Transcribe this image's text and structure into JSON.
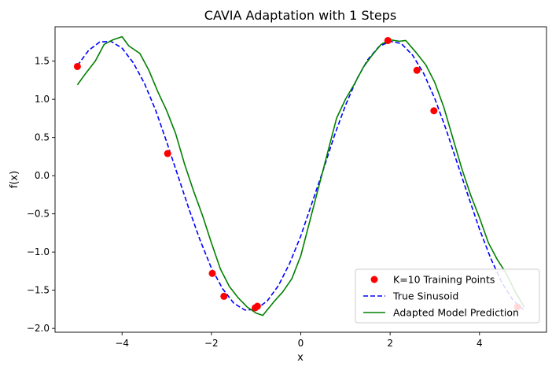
{
  "chart_data": {
    "type": "line",
    "title": "CAVIA Adaptation with 1 Steps",
    "xlabel": "x",
    "ylabel": "f(x)",
    "xlim": [
      -5.5,
      5.5
    ],
    "ylim": [
      -2.05,
      1.95
    ],
    "xticks": [
      -4,
      -2,
      0,
      2,
      4
    ],
    "xtick_labels": [
      "−4",
      "−2",
      "0",
      "2",
      "4"
    ],
    "yticks": [
      -2.0,
      -1.5,
      -1.0,
      -0.5,
      0.0,
      0.5,
      1.0,
      1.5
    ],
    "ytick_labels": [
      "−2.0",
      "−1.5",
      "−1.0",
      "−0.5",
      "0.0",
      "0.5",
      "1.0",
      "1.5"
    ],
    "grid": false,
    "legend_position": "lower-right",
    "series": [
      {
        "name": "K=10 Training Points",
        "kind": "scatter",
        "color": "#ff0000",
        "x": [
          -5.0,
          -2.98,
          -1.98,
          -1.72,
          -1.02,
          -0.97,
          1.95,
          2.6,
          2.98,
          4.85
        ],
        "y": [
          1.43,
          0.29,
          -1.28,
          -1.58,
          -1.73,
          -1.71,
          1.77,
          1.38,
          0.85,
          -1.72
        ]
      },
      {
        "name": "True Sinusoid",
        "kind": "line",
        "style": "dashed",
        "color": "#0000ff",
        "x": [
          -5.0,
          -4.75,
          -4.5,
          -4.25,
          -4.0,
          -3.75,
          -3.5,
          -3.25,
          -3.0,
          -2.75,
          -2.5,
          -2.25,
          -2.0,
          -1.75,
          -1.5,
          -1.25,
          -1.0,
          -0.75,
          -0.5,
          -0.25,
          0.0,
          0.25,
          0.5,
          0.75,
          1.0,
          1.25,
          1.5,
          1.75,
          2.0,
          2.25,
          2.5,
          2.75,
          3.0,
          3.25,
          3.5,
          3.75,
          4.0,
          4.25,
          4.5,
          4.75,
          5.0
        ],
        "y": [
          1.44,
          1.64,
          1.75,
          1.76,
          1.67,
          1.48,
          1.21,
          0.86,
          0.44,
          0.0,
          -0.44,
          -0.85,
          -1.21,
          -1.48,
          -1.67,
          -1.76,
          -1.75,
          -1.64,
          -1.44,
          -1.15,
          -0.79,
          -0.36,
          0.07,
          0.52,
          0.92,
          1.26,
          1.52,
          1.69,
          1.76,
          1.73,
          1.58,
          1.34,
          1.01,
          0.61,
          0.17,
          -0.27,
          -0.7,
          -1.08,
          -1.4,
          -1.63,
          -1.76
        ]
      },
      {
        "name": "Adapted Model Prediction",
        "kind": "line",
        "style": "solid",
        "color": "#008000",
        "x": [
          -5.0,
          -4.8,
          -4.6,
          -4.4,
          -4.2,
          -4.0,
          -3.85,
          -3.6,
          -3.4,
          -3.2,
          -3.0,
          -2.8,
          -2.6,
          -2.4,
          -2.2,
          -2.0,
          -1.8,
          -1.6,
          -1.4,
          -1.2,
          -1.0,
          -0.85,
          -0.6,
          -0.4,
          -0.2,
          0.0,
          0.2,
          0.4,
          0.6,
          0.8,
          1.0,
          1.2,
          1.4,
          1.6,
          1.8,
          2.0,
          2.2,
          2.35,
          2.6,
          2.8,
          3.0,
          3.2,
          3.4,
          3.6,
          3.8,
          4.0,
          4.2,
          4.4,
          4.6,
          4.8,
          5.0
        ],
        "y": [
          1.19,
          1.35,
          1.5,
          1.72,
          1.78,
          1.82,
          1.7,
          1.6,
          1.38,
          1.1,
          0.85,
          0.55,
          0.15,
          -0.2,
          -0.52,
          -0.88,
          -1.22,
          -1.45,
          -1.6,
          -1.72,
          -1.8,
          -1.83,
          -1.65,
          -1.52,
          -1.35,
          -1.05,
          -0.6,
          -0.15,
          0.3,
          0.75,
          1.0,
          1.2,
          1.42,
          1.58,
          1.72,
          1.78,
          1.76,
          1.77,
          1.6,
          1.45,
          1.22,
          0.9,
          0.5,
          0.1,
          -0.25,
          -0.55,
          -0.88,
          -1.1,
          -1.28,
          -1.52,
          -1.72
        ]
      }
    ]
  }
}
